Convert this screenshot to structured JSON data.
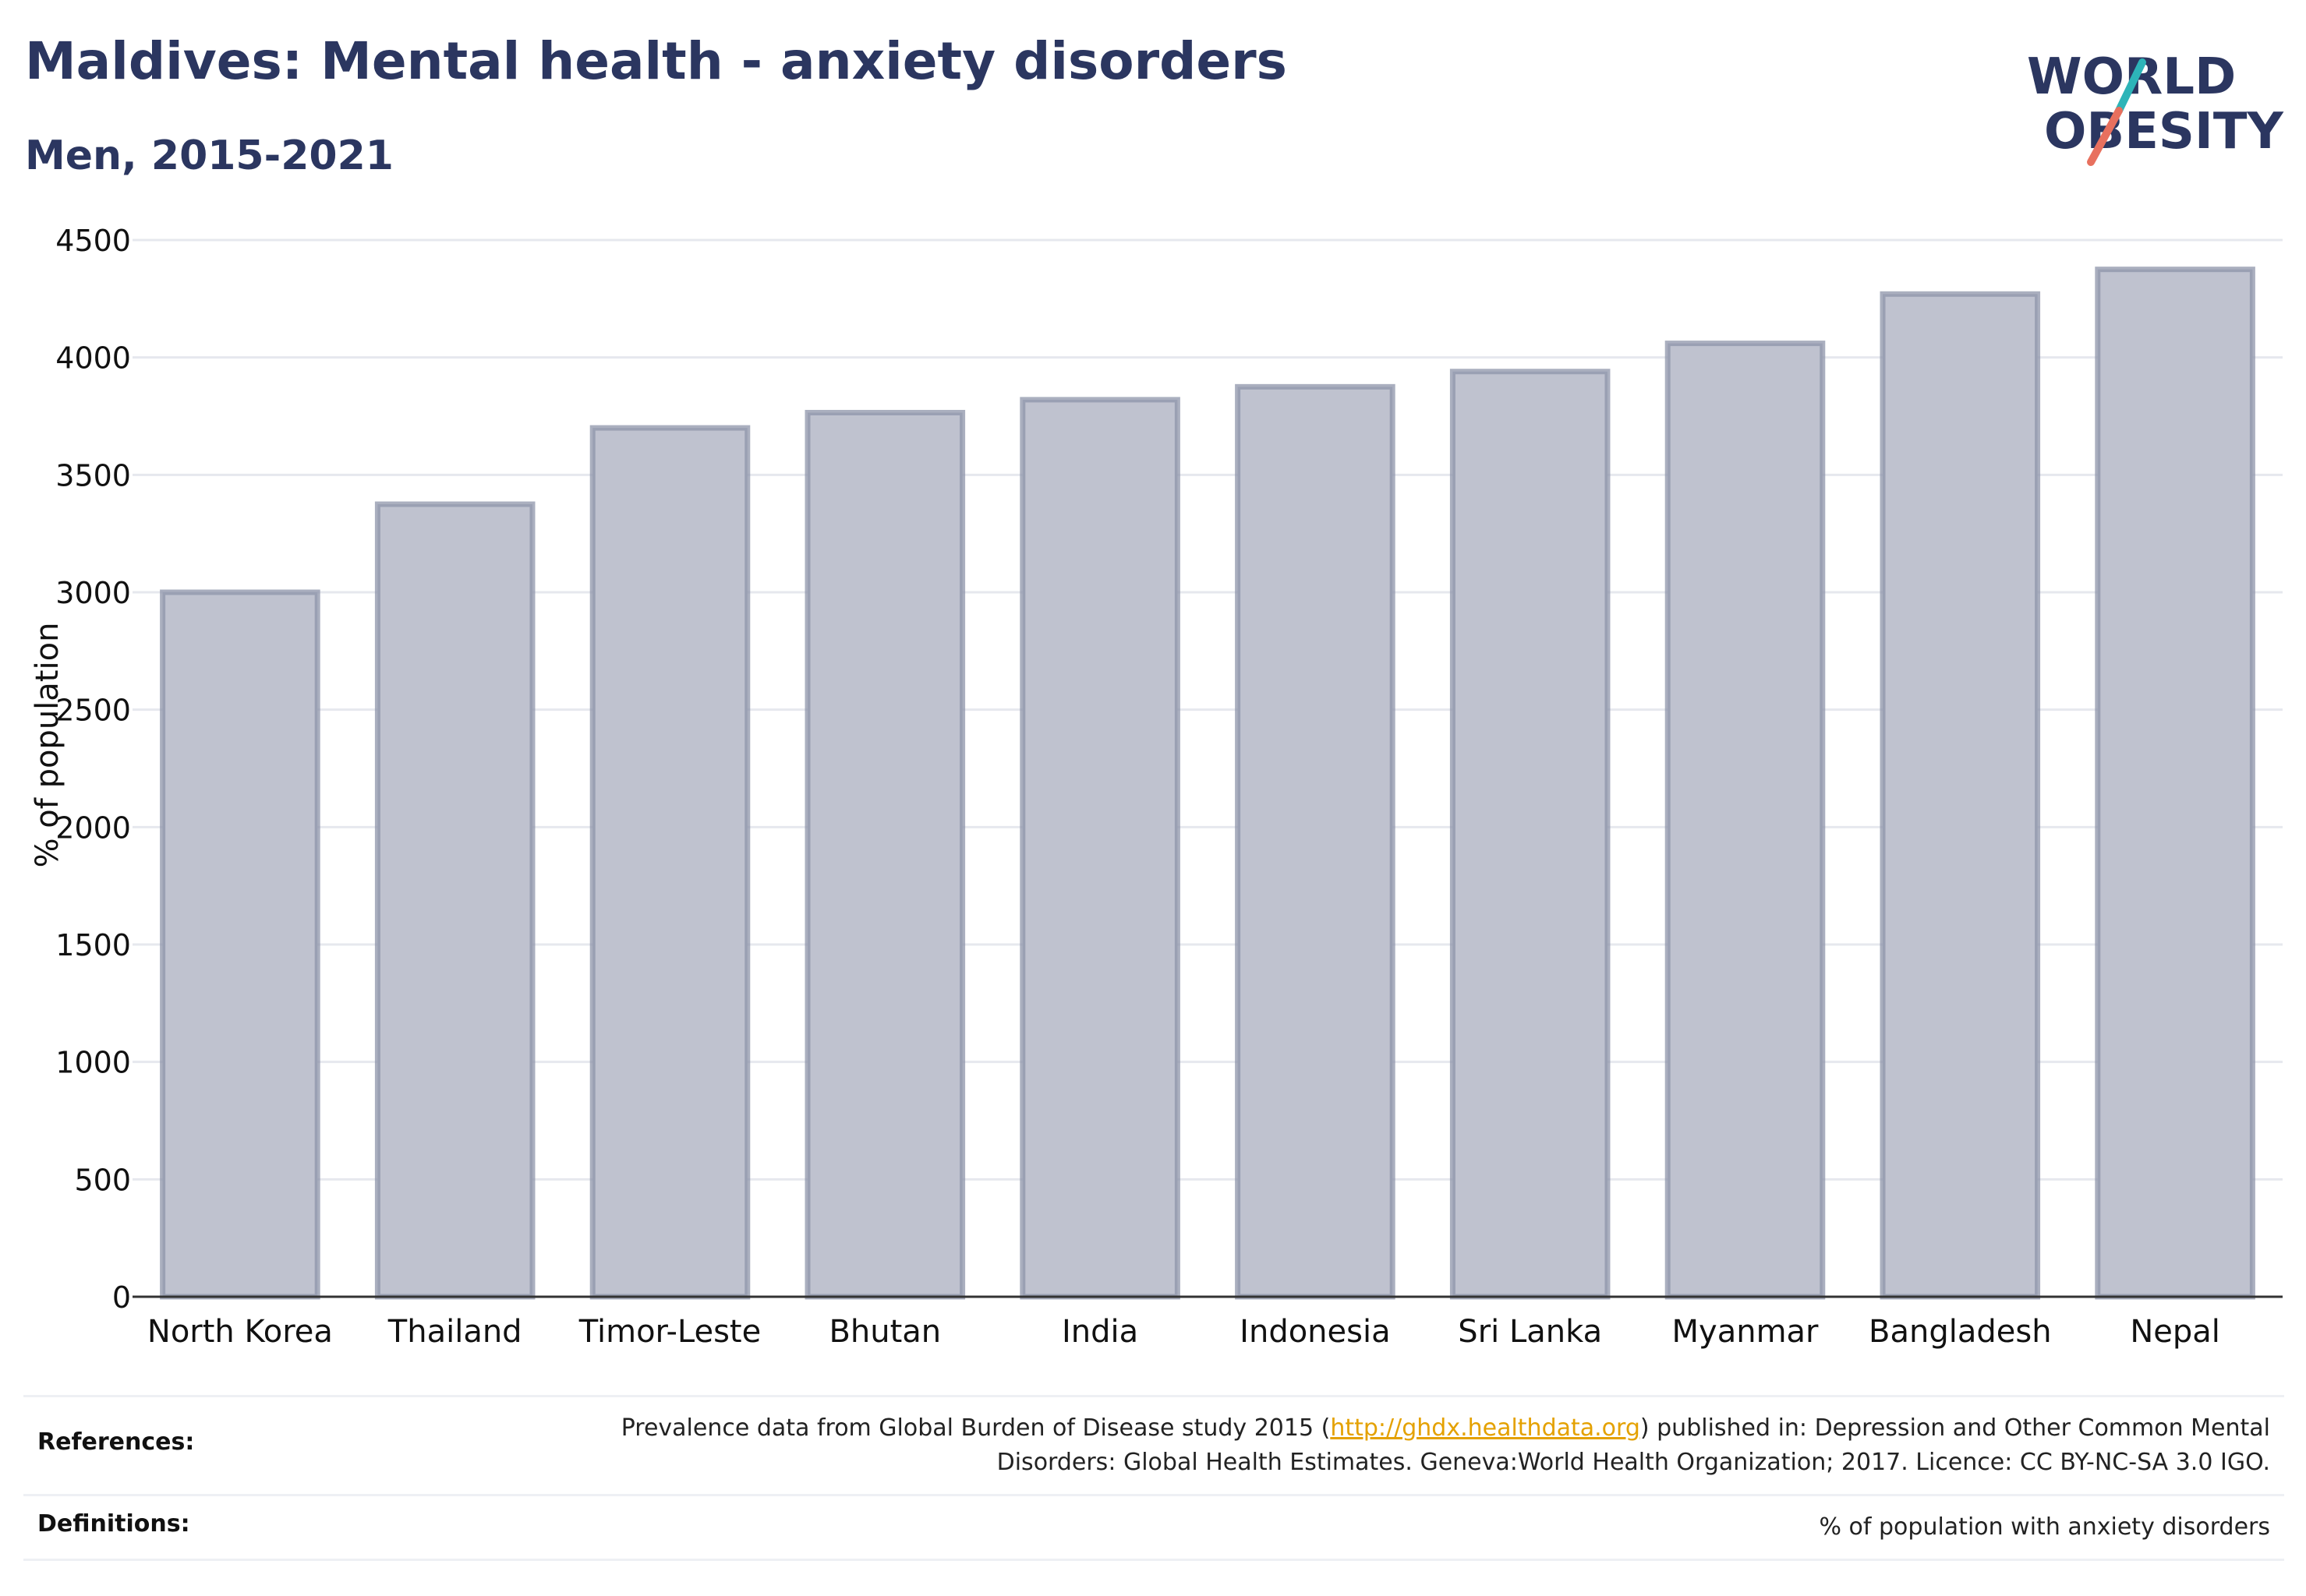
{
  "header": {
    "title": "Maldives: Mental health - anxiety disorders",
    "subtitle": "Men, 2015-2021"
  },
  "logo": {
    "line1": "WORLD",
    "line2": "OBESITY"
  },
  "colors": {
    "title": "#2b3660",
    "bar_fill": "#bfc2cf",
    "bar_stroke": "#8e94aa",
    "grid": "#e6e8ee",
    "axis": "#333333",
    "link": "#e4a100",
    "logo_teal": "#2db4b8",
    "logo_coral": "#e8705e"
  },
  "chart_data": {
    "type": "bar",
    "title": "Maldives: Mental health - anxiety disorders",
    "subtitle": "Men, 2015-2021",
    "ylabel": "% of population",
    "xlabel": "",
    "ylim": [
      0,
      4500
    ],
    "yticks": [
      0,
      500,
      1000,
      1500,
      2000,
      2500,
      3000,
      3500,
      4000,
      4500
    ],
    "grid": true,
    "categories": [
      "North Korea",
      "Thailand",
      "Timor-Leste",
      "Bhutan",
      "India",
      "Indonesia",
      "Sri Lanka",
      "Myanmar",
      "Bangladesh",
      "Nepal"
    ],
    "values": [
      3000,
      3375,
      3700,
      3765,
      3820,
      3875,
      3940,
      4060,
      4270,
      4375
    ]
  },
  "references": {
    "label": "References:",
    "text_before": "Prevalence data from Global Burden of Disease study 2015 (",
    "link": "http://ghdx.healthdata.org",
    "text_after": ") published in: Depression and Other Common Mental Disorders: Global Health Estimates. Geneva:World Health Organization; 2017. Licence: CC BY-NC-SA 3.0 IGO."
  },
  "definitions": {
    "label": "Definitions:",
    "text": "% of population with anxiety disorders"
  }
}
